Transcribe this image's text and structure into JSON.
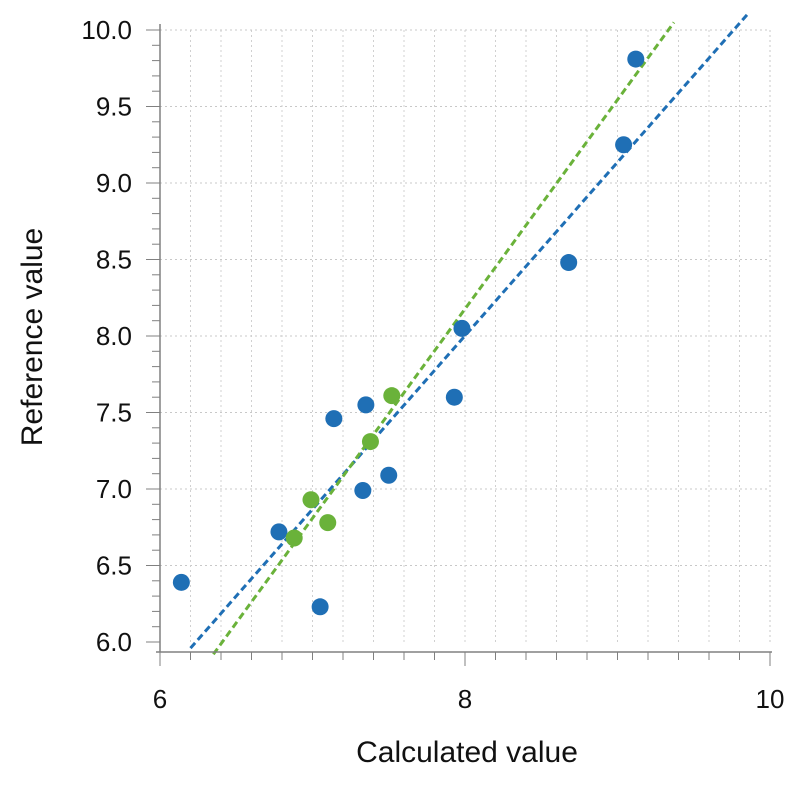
{
  "chart_data": {
    "type": "scatter",
    "xlabel": "Calculated value",
    "ylabel": "Reference value",
    "xlim": [
      6.0,
      10.0
    ],
    "ylim": [
      6.0,
      10.0
    ],
    "x_ticks": [
      "6",
      "8",
      "10"
    ],
    "y_ticks": [
      "6.0",
      "6.5",
      "7.0",
      "7.5",
      "8.0",
      "8.5",
      "9.0",
      "9.5",
      "10.0"
    ],
    "grid": true,
    "series": [
      {
        "color": "#1f6fb5",
        "points": [
          {
            "x": 6.14,
            "y": 6.39
          },
          {
            "x": 6.78,
            "y": 6.72
          },
          {
            "x": 7.05,
            "y": 6.23
          },
          {
            "x": 7.14,
            "y": 7.46
          },
          {
            "x": 7.33,
            "y": 6.99
          },
          {
            "x": 7.35,
            "y": 7.55
          },
          {
            "x": 7.5,
            "y": 7.09
          },
          {
            "x": 7.93,
            "y": 7.6
          },
          {
            "x": 7.98,
            "y": 8.05
          },
          {
            "x": 8.68,
            "y": 8.48
          },
          {
            "x": 9.04,
            "y": 9.25
          },
          {
            "x": 9.12,
            "y": 9.81
          }
        ],
        "fit_line": {
          "x": [
            6.2,
            9.85
          ],
          "y": [
            5.96,
            10.1
          ]
        }
      },
      {
        "color": "#6ab23a",
        "points": [
          {
            "x": 6.88,
            "y": 6.68
          },
          {
            "x": 6.99,
            "y": 6.93
          },
          {
            "x": 7.1,
            "y": 6.78
          },
          {
            "x": 7.38,
            "y": 7.31
          },
          {
            "x": 7.52,
            "y": 7.61
          }
        ],
        "fit_line": {
          "x": [
            6.35,
            9.37
          ],
          "y": [
            5.92,
            10.05
          ]
        }
      }
    ]
  }
}
